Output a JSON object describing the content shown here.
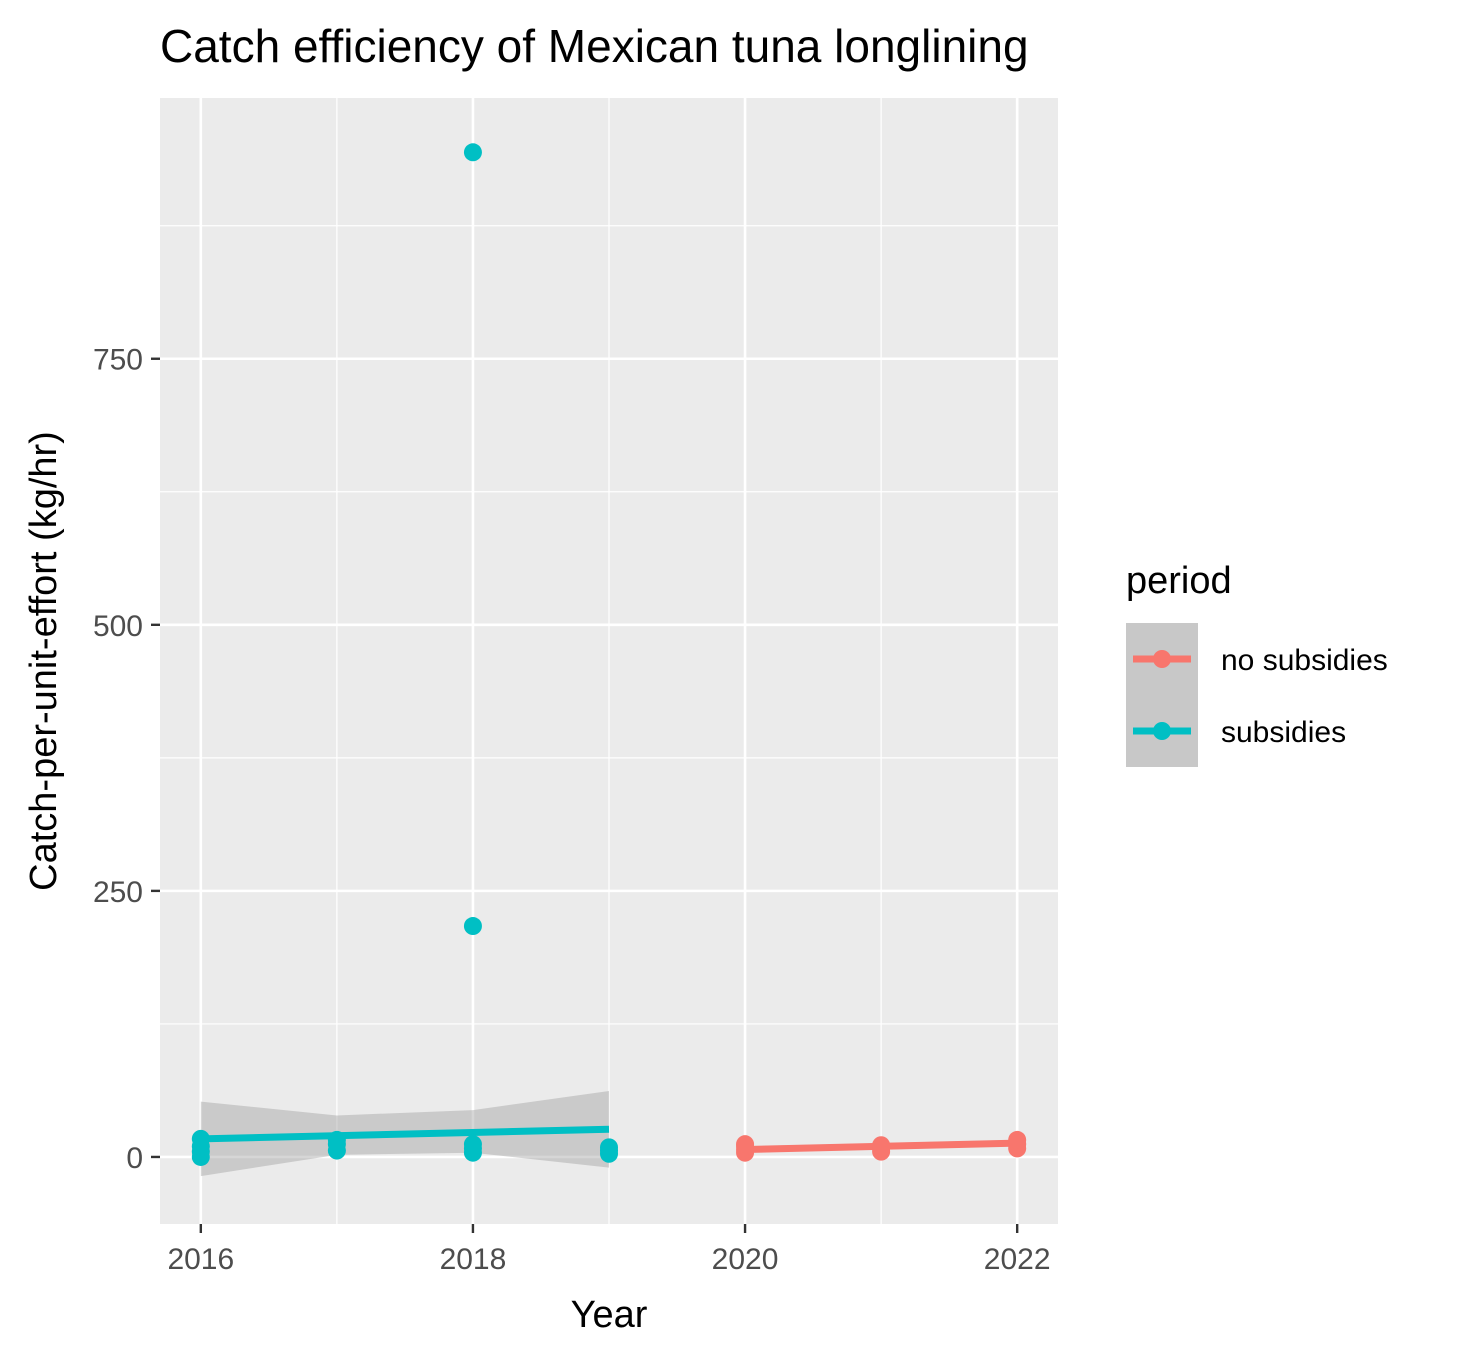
{
  "chart_data": {
    "type": "scatter",
    "title": "Catch efficiency of Mexican tuna longlining",
    "xlabel": "Year",
    "ylabel": "Catch-per-unit-effort (kg/hr)",
    "x_ticks": [
      2016,
      2018,
      2020,
      2022
    ],
    "y_ticks": [
      0,
      250,
      500,
      750
    ],
    "xlim": [
      2015.7,
      2022.3
    ],
    "ylim": [
      -63,
      995
    ],
    "grid": true,
    "background": "#ebebeb",
    "legend": {
      "title": "period",
      "position": "right",
      "entries": [
        {
          "label": "no subsidies",
          "color": "#f8766d"
        },
        {
          "label": "subsidies",
          "color": "#00bfc4"
        }
      ]
    },
    "series": [
      {
        "name": "no subsidies",
        "color": "#f8766d",
        "points": [
          {
            "x": 2020,
            "y": 4
          },
          {
            "x": 2020,
            "y": 7
          },
          {
            "x": 2020,
            "y": 10
          },
          {
            "x": 2020,
            "y": 12
          },
          {
            "x": 2021,
            "y": 5
          },
          {
            "x": 2021,
            "y": 8
          },
          {
            "x": 2021,
            "y": 11
          },
          {
            "x": 2022,
            "y": 8
          },
          {
            "x": 2022,
            "y": 12
          },
          {
            "x": 2022,
            "y": 16
          }
        ],
        "trend": [
          {
            "x": 2020,
            "y": 7
          },
          {
            "x": 2022,
            "y": 13
          }
        ],
        "ribbon": [
          {
            "x": 2020,
            "lo": 4,
            "hi": 10
          },
          {
            "x": 2022,
            "lo": 10,
            "hi": 16
          }
        ]
      },
      {
        "name": "subsidies",
        "color": "#00bfc4",
        "points": [
          {
            "x": 2016,
            "y": 0
          },
          {
            "x": 2016,
            "y": 5
          },
          {
            "x": 2016,
            "y": 10
          },
          {
            "x": 2016,
            "y": 17
          },
          {
            "x": 2017,
            "y": 6
          },
          {
            "x": 2017,
            "y": 12
          },
          {
            "x": 2017,
            "y": 16
          },
          {
            "x": 2018,
            "y": 4
          },
          {
            "x": 2018,
            "y": 8
          },
          {
            "x": 2018,
            "y": 12
          },
          {
            "x": 2018,
            "y": 217
          },
          {
            "x": 2018,
            "y": 944
          },
          {
            "x": 2019,
            "y": 3
          },
          {
            "x": 2019,
            "y": 6
          },
          {
            "x": 2019,
            "y": 9
          }
        ],
        "trend": [
          {
            "x": 2016,
            "y": 17
          },
          {
            "x": 2019,
            "y": 26
          }
        ],
        "ribbon": [
          {
            "x": 2016,
            "lo": -18,
            "hi": 52
          },
          {
            "x": 2017,
            "lo": 2,
            "hi": 39
          },
          {
            "x": 2018,
            "lo": 4,
            "hi": 44
          },
          {
            "x": 2019,
            "lo": -10,
            "hi": 62
          }
        ]
      }
    ]
  }
}
